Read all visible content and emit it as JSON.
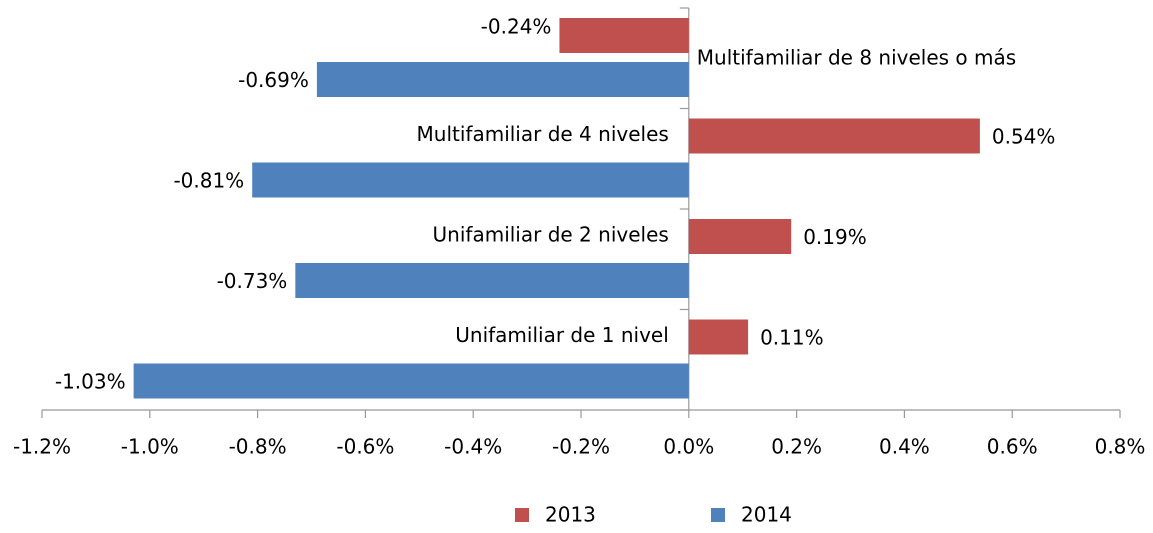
{
  "chart_data": {
    "type": "bar",
    "orientation": "horizontal",
    "categories": [
      "Multifamiliar de 8 niveles o más",
      "Multifamiliar de 4 niveles",
      "Unifamiliar de 2 niveles",
      "Unifamiliar de 1 nivel"
    ],
    "series": [
      {
        "name": "2013",
        "color": "#c0504d",
        "values": [
          -0.24,
          0.54,
          0.19,
          0.11
        ],
        "value_labels": [
          "-0.24%",
          "0.54%",
          "0.19%",
          "0.11%"
        ]
      },
      {
        "name": "2014",
        "color": "#4f81bd",
        "values": [
          -0.69,
          -0.81,
          -0.73,
          -1.03
        ],
        "value_labels": [
          "-0.69%",
          "-0.81%",
          "-0.73%",
          "-1.03%"
        ]
      }
    ],
    "xlim": [
      -1.2,
      0.8
    ],
    "xticks": [
      {
        "value": -1.2,
        "label": "-1.2%"
      },
      {
        "value": -1.0,
        "label": "-1.0%"
      },
      {
        "value": -0.8,
        "label": "-0.8%"
      },
      {
        "value": -0.6,
        "label": "-0.6%"
      },
      {
        "value": -0.4,
        "label": "-0.4%"
      },
      {
        "value": -0.2,
        "label": "-0.2%"
      },
      {
        "value": 0,
        "label": "0.0%"
      },
      {
        "value": 0.2,
        "label": "0.2%"
      },
      {
        "value": 0.4,
        "label": "0.4%"
      },
      {
        "value": 0.6,
        "label": "0.6%"
      },
      {
        "value": 0.8,
        "label": "0.8%"
      }
    ],
    "legend": "bottom"
  }
}
